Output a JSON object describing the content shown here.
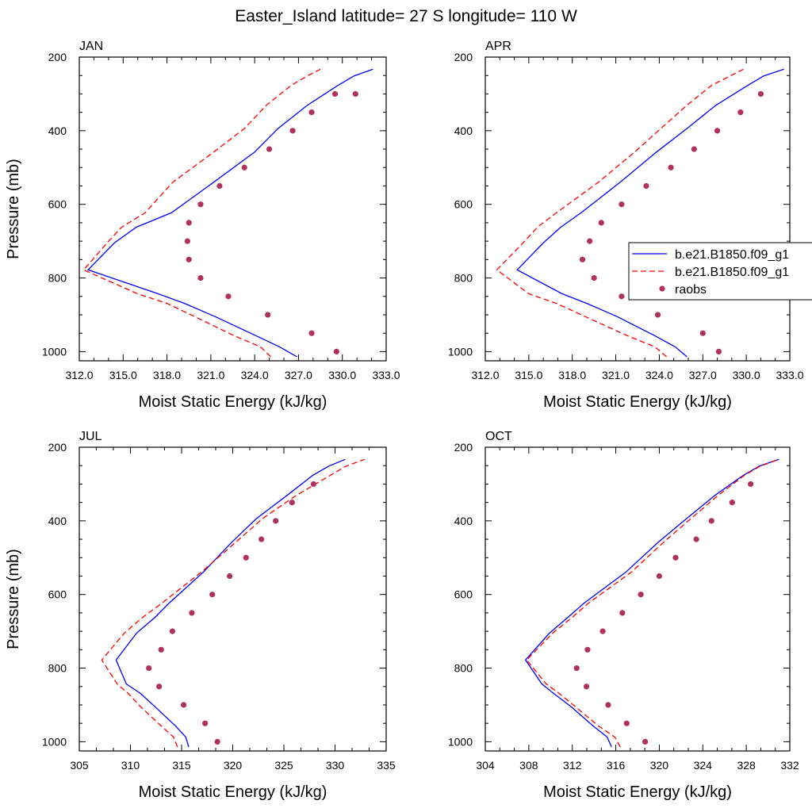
{
  "title": "Easter_Island  latitude= 27 S longitude= 110 W",
  "legend": {
    "entries": [
      {
        "label": "b.e21.B1850.f09_g1",
        "style": "solid",
        "color": "#0000ff"
      },
      {
        "label": "b.e21.B1850.f09_g1",
        "style": "dashed",
        "color": "#ff0000"
      },
      {
        "label": "raobs",
        "style": "dots",
        "color": "#b03060"
      }
    ]
  },
  "colors": {
    "model_solid": "#0000ff",
    "model_dashed": "#ff0000",
    "raobs": "#b03060"
  },
  "chart_data": [
    {
      "type": "line",
      "panel_label": "JAN",
      "xlabel": "Moist Static Energy (kJ/kg)",
      "ylabel": "Pressure (mb)",
      "xlim": [
        312,
        333
      ],
      "ylim": [
        1025,
        200
      ],
      "xticks": [
        312,
        315,
        318,
        321,
        324,
        327,
        330,
        333
      ],
      "xtick_labels": [
        "312.0",
        "315.0",
        "318.0",
        "321.0",
        "324.0",
        "327.0",
        "330.0",
        "333.0"
      ],
      "yticks": [
        200,
        400,
        600,
        800,
        1000
      ],
      "series": [
        {
          "name": "b.e21.B1850.f09_g1",
          "style": "solid",
          "x": [
            326.9,
            325.7,
            324.1,
            321.3,
            319.2,
            317.4,
            312.6,
            314.4,
            315.9,
            318.3,
            321.2,
            324.0,
            325.6,
            327.6,
            329.7,
            330.8,
            332.1
          ],
          "y": [
            1014,
            987,
            957,
            905,
            869,
            843,
            778,
            705,
            662,
            623,
            540,
            458,
            394,
            331,
            277,
            251,
            233
          ]
        },
        {
          "name": "b.e21.B1850.f09_g1",
          "style": "dashed",
          "x": [
            325.1,
            324.4,
            322.6,
            319.9,
            318.0,
            316.0,
            312.3,
            313.9,
            314.9,
            316.5,
            318.4,
            321.2,
            323.3,
            324.8,
            326.5,
            327.6,
            328.5
          ],
          "y": [
            1014,
            987,
            957,
            905,
            869,
            843,
            778,
            705,
            662,
            623,
            540,
            458,
            394,
            331,
            277,
            251,
            233
          ]
        },
        {
          "name": "raobs",
          "style": "dots",
          "x": [
            329.6,
            327.9,
            324.9,
            322.2,
            320.3,
            319.5,
            319.4,
            319.5,
            320.3,
            321.6,
            323.3,
            325.0,
            326.6,
            327.9,
            329.5,
            330.9
          ],
          "y": [
            1000,
            950,
            900,
            850,
            800,
            750,
            700,
            650,
            600,
            550,
            500,
            450,
            400,
            350,
            300,
            300
          ]
        }
      ]
    },
    {
      "type": "line",
      "panel_label": "APR",
      "xlabel": "Moist Static Energy (kJ/kg)",
      "ylabel": "",
      "xlim": [
        312,
        333
      ],
      "ylim": [
        1025,
        200
      ],
      "xticks": [
        312,
        315,
        318,
        321,
        324,
        327,
        330,
        333
      ],
      "xtick_labels": [
        "312.0",
        "315.0",
        "318.0",
        "321.0",
        "324.0",
        "327.0",
        "330.0",
        "333.0"
      ],
      "yticks": [
        200,
        400,
        600,
        800,
        1000
      ],
      "series": [
        {
          "name": "b.e21.B1850.f09_g1",
          "style": "solid",
          "x": [
            325.9,
            325.1,
            323.7,
            321.1,
            319.0,
            317.3,
            314.2,
            316.0,
            317.2,
            318.6,
            321.3,
            323.8,
            325.9,
            327.9,
            330.1,
            331.2,
            332.6
          ],
          "y": [
            1014,
            987,
            957,
            905,
            869,
            843,
            778,
            705,
            662,
            623,
            540,
            458,
            394,
            331,
            277,
            251,
            233
          ]
        },
        {
          "name": "b.e21.B1850.f09_g1",
          "style": "dashed",
          "x": [
            324.5,
            323.7,
            321.8,
            318.9,
            316.9,
            315.0,
            312.8,
            314.6,
            315.6,
            316.9,
            319.8,
            322.3,
            324.1,
            325.9,
            327.6,
            328.9,
            329.8
          ],
          "y": [
            1014,
            987,
            957,
            905,
            869,
            843,
            778,
            705,
            662,
            623,
            540,
            458,
            394,
            331,
            277,
            251,
            233
          ]
        },
        {
          "name": "raobs",
          "style": "dots",
          "x": [
            328.1,
            327.0,
            323.9,
            321.4,
            319.5,
            318.7,
            319.2,
            320.0,
            321.4,
            323.1,
            324.8,
            326.4,
            328.0,
            329.6,
            331.0
          ],
          "y": [
            1000,
            950,
            900,
            850,
            800,
            750,
            700,
            650,
            600,
            550,
            500,
            450,
            400,
            350,
            300
          ]
        }
      ]
    },
    {
      "type": "line",
      "panel_label": "JUL",
      "xlabel": "Moist Static Energy (kJ/kg)",
      "ylabel": "Pressure (mb)",
      "xlim": [
        305,
        335
      ],
      "ylim": [
        1025,
        200
      ],
      "xticks": [
        305,
        310,
        315,
        320,
        325,
        330,
        335
      ],
      "xtick_labels": [
        "305",
        "310",
        "315",
        "320",
        "325",
        "330",
        "335"
      ],
      "yticks": [
        200,
        400,
        600,
        800,
        1000
      ],
      "series": [
        {
          "name": "b.e21.B1850.f09_g1",
          "style": "solid",
          "x": [
            315.7,
            315.4,
            314.4,
            312.4,
            311.0,
            309.6,
            308.6,
            310.6,
            312.4,
            313.8,
            317.1,
            319.9,
            322.3,
            325.3,
            327.8,
            329.4,
            331.0
          ],
          "y": [
            1014,
            987,
            957,
            905,
            869,
            843,
            778,
            705,
            662,
            623,
            540,
            458,
            394,
            331,
            277,
            251,
            233
          ]
        },
        {
          "name": "b.e21.B1850.f09_g1",
          "style": "dashed",
          "x": [
            314.6,
            314.2,
            313.0,
            311.0,
            309.8,
            308.7,
            307.2,
            309.4,
            311.2,
            313.1,
            316.9,
            320.3,
            322.9,
            326.2,
            329.5,
            331.1,
            332.9
          ],
          "y": [
            1014,
            987,
            957,
            905,
            869,
            843,
            778,
            705,
            662,
            623,
            540,
            458,
            394,
            331,
            277,
            251,
            233
          ]
        },
        {
          "name": "raobs",
          "style": "dots",
          "x": [
            318.5,
            317.3,
            315.2,
            312.8,
            311.8,
            313.0,
            314.1,
            316.0,
            318.0,
            319.7,
            321.3,
            322.8,
            324.2,
            325.8,
            327.9
          ],
          "y": [
            1000,
            950,
            900,
            850,
            800,
            750,
            700,
            650,
            600,
            550,
            500,
            450,
            400,
            350,
            300
          ]
        }
      ]
    },
    {
      "type": "line",
      "panel_label": "OCT",
      "xlabel": "Moist Static Energy (kJ/kg)",
      "ylabel": "",
      "xlim": [
        304,
        332
      ],
      "ylim": [
        1025,
        200
      ],
      "xticks": [
        304,
        308,
        312,
        316,
        320,
        324,
        328,
        332
      ],
      "xtick_labels": [
        "304",
        "308",
        "312",
        "316",
        "320",
        "324",
        "328",
        "332"
      ],
      "yticks": [
        200,
        400,
        600,
        800,
        1000
      ],
      "series": [
        {
          "name": "b.e21.B1850.f09_g1",
          "style": "solid",
          "x": [
            315.6,
            315.2,
            313.9,
            311.9,
            310.3,
            309.2,
            307.7,
            309.9,
            311.6,
            313.1,
            316.9,
            319.9,
            322.5,
            325.1,
            327.7,
            329.2,
            331.0
          ],
          "y": [
            1014,
            987,
            957,
            905,
            869,
            843,
            778,
            705,
            662,
            623,
            540,
            458,
            394,
            331,
            277,
            251,
            233
          ]
        },
        {
          "name": "b.e21.B1850.f09_g1",
          "style": "dashed",
          "x": [
            316.4,
            315.9,
            314.4,
            312.3,
            310.8,
            309.6,
            307.8,
            310.2,
            312.0,
            313.5,
            317.4,
            320.4,
            322.9,
            325.4,
            327.8,
            329.3,
            331.0
          ],
          "y": [
            1014,
            987,
            957,
            905,
            869,
            843,
            778,
            705,
            662,
            623,
            540,
            458,
            394,
            331,
            277,
            251,
            233
          ]
        },
        {
          "name": "raobs",
          "style": "dots",
          "x": [
            318.7,
            317.0,
            315.3,
            313.3,
            312.4,
            313.4,
            314.8,
            316.6,
            318.3,
            320.0,
            321.5,
            323.4,
            324.8,
            326.7,
            328.4
          ],
          "y": [
            1000,
            950,
            900,
            850,
            800,
            750,
            700,
            650,
            600,
            550,
            500,
            450,
            400,
            350,
            300
          ]
        }
      ]
    }
  ]
}
